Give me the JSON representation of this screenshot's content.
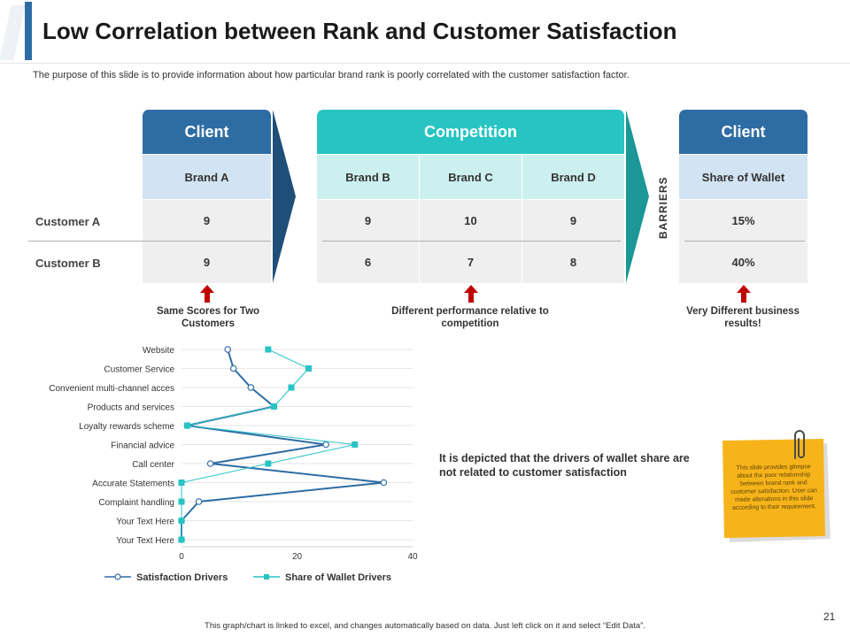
{
  "slide": {
    "title": "Low Correlation between Rank and Customer Satisfaction",
    "subtitle": "The purpose of this slide is to provide information about how particular brand rank is poorly correlated with the customer satisfaction factor.",
    "page_number": "21",
    "footer": "This graph/chart is linked to excel, and changes automatically based on data. Just left click on it and select “Edit Data”.",
    "colors": {
      "blue": "#2e6ca4",
      "teal": "#27c4c3",
      "arrow_red": "#c00000",
      "note": "#f7b41a"
    }
  },
  "table": {
    "client_header": "Client",
    "competition_header": "Competition",
    "client2_header": "Client",
    "brand_a": "Brand A",
    "brand_b": "Brand B",
    "brand_c": "Brand C",
    "brand_d": "Brand D",
    "share_of_wallet": "Share of Wallet",
    "barriers": "BARRIERS",
    "rows": [
      {
        "label": "Customer  A",
        "brand_a": "9",
        "brand_b": "9",
        "brand_c": "10",
        "brand_d": "9",
        "share": "15%"
      },
      {
        "label": "Customer  B",
        "brand_a": "9",
        "brand_b": "6",
        "brand_c": "7",
        "brand_d": "8",
        "share": "40%"
      }
    ]
  },
  "captions": {
    "left": "Same Scores for Two Customers",
    "middle": "Different performance relative to competition",
    "right": "Very Different business results!"
  },
  "statement": "It is depicted that the drivers of wallet share are not related to customer satisfaction",
  "sticky_note": "This slide provides glimpse about the poor relationship between brand rank and customer satisfaction. User can made alterations in this slide according to their requirement.",
  "chart_data": {
    "type": "line",
    "orientation": "horizontal",
    "title": "",
    "categories": [
      "Website",
      "Customer Service",
      "Convenient multi-channel acces",
      "Products and services",
      "Loyalty rewards scheme",
      "Financial advice",
      "Call center",
      "Accurate Statements",
      "Complaint handling",
      "Your Text Here",
      "Your Text Here"
    ],
    "series": [
      {
        "name": "Satisfaction Drivers",
        "color": "#2e6ca4",
        "marker": "circle",
        "values": [
          8,
          9,
          12,
          16,
          1,
          25,
          5,
          35,
          3,
          0,
          0
        ]
      },
      {
        "name": "Share of Wallet Drivers",
        "color": "#27c4c3",
        "marker": "square",
        "values": [
          15,
          22,
          19,
          16,
          1,
          30,
          15,
          0,
          0,
          0,
          0
        ]
      }
    ],
    "xlim": [
      0,
      40
    ],
    "xticks": [
      "0",
      "20",
      "40"
    ],
    "legend": "bottom",
    "grid": true
  }
}
